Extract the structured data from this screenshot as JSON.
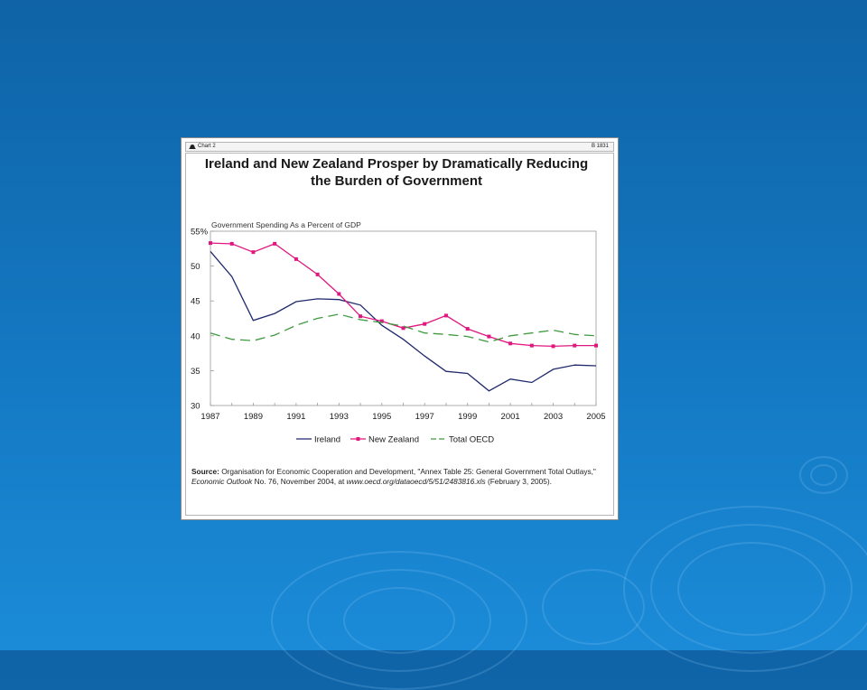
{
  "window": {
    "tab_label": "Chart 2",
    "chart_id": "B 1831"
  },
  "source": {
    "label": "Source:",
    "text_1": "Organisation for Economic Cooperation and Development, \"Annex Table 25: General Government Total Outlays,\"",
    "publication": "Economic Outlook",
    "text_2": "No. 76, November 2004, at",
    "url": "www.oecd.org/dataoecd/5/51/2483816.xls",
    "text_3": "(February 3, 2005)."
  },
  "colors": {
    "background": "#1478c2",
    "ireland": "#1f2a6e",
    "new_zealand": "#e0177e",
    "oecd": "#3f9a3f"
  },
  "chart_data": {
    "type": "line",
    "title": "Ireland and New Zealand Prosper by Dramatically Reducing the Burden of Government",
    "title_line1": "Ireland and New Zealand Prosper by Dramatically Reducing",
    "title_line2": "the Burden of Government",
    "ylabel": "Government Spending As a Percent of GDP",
    "x": [
      1987,
      1988,
      1989,
      1990,
      1991,
      1992,
      1993,
      1994,
      1995,
      1996,
      1997,
      1998,
      1999,
      2000,
      2001,
      2002,
      2003,
      2004,
      2005
    ],
    "xlim": [
      1987,
      2005
    ],
    "ylim": [
      30,
      55
    ],
    "x_ticks": [
      "1987",
      "1989",
      "1991",
      "1993",
      "1995",
      "1997",
      "1999",
      "2001",
      "2003",
      "2005"
    ],
    "y_ticks": [
      "55%",
      "50",
      "45",
      "40",
      "35",
      "30"
    ],
    "grid": false,
    "legend_position": "bottom",
    "series": [
      {
        "name": "Ireland",
        "style": "solid",
        "values": [
          52.1,
          48.5,
          42.2,
          43.2,
          44.9,
          45.3,
          45.2,
          44.4,
          41.5,
          39.5,
          37.1,
          34.9,
          34.6,
          32.1,
          33.8,
          33.3,
          35.2,
          35.8,
          35.7
        ]
      },
      {
        "name": "New Zealand",
        "style": "markers",
        "values": [
          53.3,
          53.2,
          52.0,
          53.2,
          51.0,
          48.8,
          46.0,
          42.8,
          42.1,
          41.1,
          41.7,
          42.9,
          41.0,
          39.9,
          38.9,
          38.6,
          38.5,
          38.6,
          38.6
        ]
      },
      {
        "name": "Total OECD",
        "style": "dashed",
        "values": [
          40.4,
          39.5,
          39.3,
          40.1,
          41.5,
          42.5,
          43.1,
          42.3,
          41.9,
          41.4,
          40.4,
          40.2,
          39.9,
          39.1,
          40.0,
          40.4,
          40.8,
          40.2,
          40.0
        ]
      }
    ]
  }
}
